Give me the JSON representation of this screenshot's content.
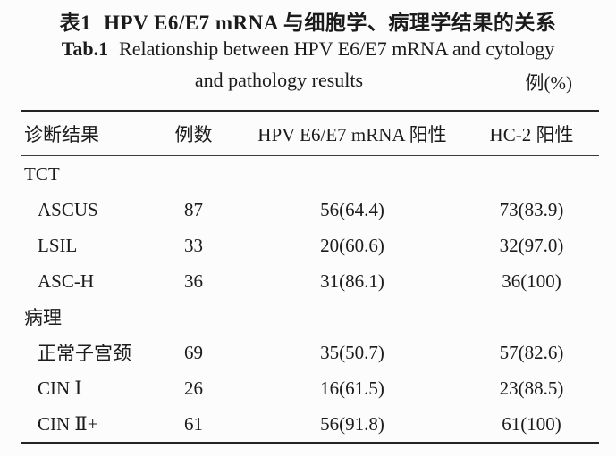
{
  "title": {
    "zh_label": "表1",
    "zh_text": "HPV E6/E7 mRNA 与细胞学、病理学结果的关系",
    "en_label": "Tab.1",
    "en_line1": "Relationship between HPV E6/E7 mRNA and cytology",
    "en_line2": "and pathology results",
    "unit": "例(%)"
  },
  "table": {
    "columns": [
      "诊断结果",
      "例数",
      "HPV E6/E7 mRNA 阳性",
      "HC-2 阳性"
    ],
    "rows": [
      {
        "label": "TCT",
        "group": true,
        "n": "",
        "mrna": "",
        "hc2": ""
      },
      {
        "label": "ASCUS",
        "group": false,
        "n": "87",
        "mrna": "56(64.4)",
        "hc2": "73(83.9)"
      },
      {
        "label": "LSIL",
        "group": false,
        "n": "33",
        "mrna": "20(60.6)",
        "hc2": "32(97.0)"
      },
      {
        "label": "ASC-H",
        "group": false,
        "n": "36",
        "mrna": "31(86.1)",
        "hc2": "36(100)"
      },
      {
        "label": "病理",
        "group": true,
        "n": "",
        "mrna": "",
        "hc2": ""
      },
      {
        "label": "正常子宫颈",
        "group": false,
        "n": "69",
        "mrna": "35(50.7)",
        "hc2": "57(82.6)"
      },
      {
        "label": "CIN Ⅰ",
        "group": false,
        "n": "26",
        "mrna": "16(61.5)",
        "hc2": "23(88.5)"
      },
      {
        "label": "CIN Ⅱ+",
        "group": false,
        "n": "61",
        "mrna": "56(91.8)",
        "hc2": "61(100)"
      }
    ]
  },
  "chart_data": {
    "type": "table",
    "title": "表1 HPV E6/E7 mRNA 与细胞学、病理学结果的关系 / Tab.1 Relationship between HPV E6/E7 mRNA and cytology and pathology results",
    "unit": "例(%)",
    "columns": [
      "诊断结果",
      "例数",
      "HPV E6/E7 mRNA 阳性",
      "HC-2 阳性"
    ],
    "groups": [
      {
        "group": "TCT",
        "rows": [
          {
            "诊断结果": "ASCUS",
            "例数": 87,
            "HPV E6/E7 mRNA 阳性": "56(64.4)",
            "HC-2 阳性": "73(83.9)"
          },
          {
            "诊断结果": "LSIL",
            "例数": 33,
            "HPV E6/E7 mRNA 阳性": "20(60.6)",
            "HC-2 阳性": "32(97.0)"
          },
          {
            "诊断结果": "ASC-H",
            "例数": 36,
            "HPV E6/E7 mRNA 阳性": "31(86.1)",
            "HC-2 阳性": "36(100)"
          }
        ]
      },
      {
        "group": "病理",
        "rows": [
          {
            "诊断结果": "正常子宫颈",
            "例数": 69,
            "HPV E6/E7 mRNA 阳性": "35(50.7)",
            "HC-2 阳性": "57(82.6)"
          },
          {
            "诊断结果": "CIN Ⅰ",
            "例数": 26,
            "HPV E6/E7 mRNA 阳性": "16(61.5)",
            "HC-2 阳性": "23(88.5)"
          },
          {
            "诊断结果": "CIN Ⅱ+",
            "例数": 61,
            "HPV E6/E7 mRNA 阳性": "56(91.8)",
            "HC-2 阳性": "61(100)"
          }
        ]
      }
    ]
  },
  "colors": {
    "background": "#fcfcfc",
    "text": "#1b1b1b",
    "thick_rule": "#242424",
    "thin_rule": "#3c3c3c"
  }
}
